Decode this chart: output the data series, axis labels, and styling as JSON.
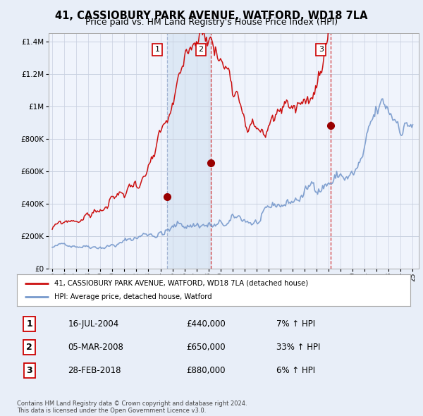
{
  "title": "41, CASSIOBURY PARK AVENUE, WATFORD, WD18 7LA",
  "subtitle": "Price paid vs. HM Land Registry's House Price Index (HPI)",
  "sale_years": [
    2004.54,
    2008.17,
    2018.16
  ],
  "sale_prices": [
    440000,
    650000,
    880000
  ],
  "sale_labels": [
    "1",
    "2",
    "3"
  ],
  "xlim": [
    1994.7,
    2025.5
  ],
  "ylim": [
    0,
    1450000
  ],
  "yticks": [
    0,
    200000,
    400000,
    600000,
    800000,
    1000000,
    1200000,
    1400000
  ],
  "ytick_labels": [
    "£0",
    "£200K",
    "£400K",
    "£600K",
    "£800K",
    "£1M",
    "£1.2M",
    "£1.4M"
  ],
  "xticks": [
    1995,
    1996,
    1997,
    1998,
    1999,
    2000,
    2001,
    2002,
    2003,
    2004,
    2005,
    2006,
    2007,
    2008,
    2009,
    2010,
    2011,
    2012,
    2013,
    2014,
    2015,
    2016,
    2017,
    2018,
    2019,
    2020,
    2021,
    2022,
    2023,
    2024,
    2025
  ],
  "hpi_color": "#7799cc",
  "price_color": "#cc1111",
  "vline1_color": "#99aacc",
  "vline23_color": "#cc1111",
  "shade_color": "#dde8f5",
  "dot_color": "#990000",
  "legend_label_price": "41, CASSIOBURY PARK AVENUE, WATFORD, WD18 7LA (detached house)",
  "legend_label_hpi": "HPI: Average price, detached house, Watford",
  "table_data": [
    {
      "num": "1",
      "date": "16-JUL-2004",
      "price": "£440,000",
      "hpi": "7% ↑ HPI"
    },
    {
      "num": "2",
      "date": "05-MAR-2008",
      "price": "£650,000",
      "hpi": "33% ↑ HPI"
    },
    {
      "num": "3",
      "date": "28-FEB-2018",
      "price": "£880,000",
      "hpi": "6% ↑ HPI"
    }
  ],
  "footer": "Contains HM Land Registry data © Crown copyright and database right 2024.\nThis data is licensed under the Open Government Licence v3.0.",
  "bg_color": "#e8eef8",
  "plot_bg_color": "#f0f4fc",
  "grid_color": "#c8d0e0"
}
